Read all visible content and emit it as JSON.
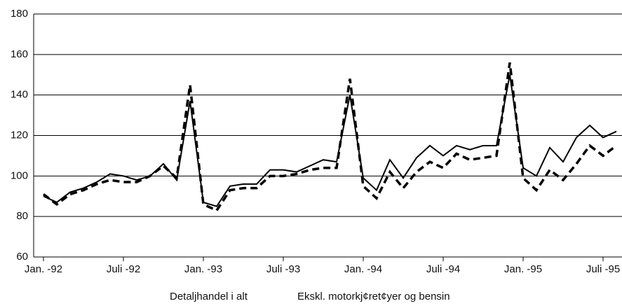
{
  "chart_data": {
    "type": "line",
    "categories": [
      "Jan. -92",
      null,
      null,
      null,
      null,
      null,
      "Juli -92",
      null,
      null,
      null,
      null,
      null,
      "Jan. -93",
      null,
      null,
      null,
      null,
      null,
      "Juli -93",
      null,
      null,
      null,
      null,
      null,
      "Jan. -94",
      null,
      null,
      null,
      null,
      null,
      "Juli -94",
      null,
      null,
      null,
      null,
      null,
      "Jan. -95",
      null,
      null,
      null,
      null,
      null,
      "Juli -95",
      null
    ],
    "series": [
      {
        "name": "Detaljhandel i alt",
        "color": "#000000",
        "dash": "solid",
        "values": [
          90,
          87,
          92,
          94,
          97,
          101,
          100,
          98,
          100,
          106,
          98,
          137,
          87,
          85,
          95,
          96,
          96,
          103,
          103,
          102,
          105,
          108,
          107,
          140,
          99,
          93,
          108,
          99,
          109,
          115,
          110,
          115,
          113,
          115,
          115,
          150,
          104,
          100,
          114,
          107,
          119,
          125,
          119,
          122
        ]
      },
      {
        "name": "Ekskl. motorkj¢ret¢yer og bensin",
        "color": "#000000",
        "dash": "dashed",
        "values": [
          91,
          86,
          91,
          93,
          96,
          98,
          97,
          97,
          100,
          105,
          99,
          145,
          86,
          83,
          93,
          94,
          94,
          100,
          100,
          101,
          103,
          104,
          104,
          148,
          95,
          89,
          102,
          94,
          102,
          107,
          104,
          111,
          108,
          109,
          110,
          156,
          99,
          93,
          103,
          98,
          106,
          115,
          110,
          115
        ]
      }
    ],
    "ylim": [
      60,
      180
    ],
    "yticks": [
      60,
      80,
      100,
      120,
      140,
      160,
      180
    ],
    "grid": true
  }
}
